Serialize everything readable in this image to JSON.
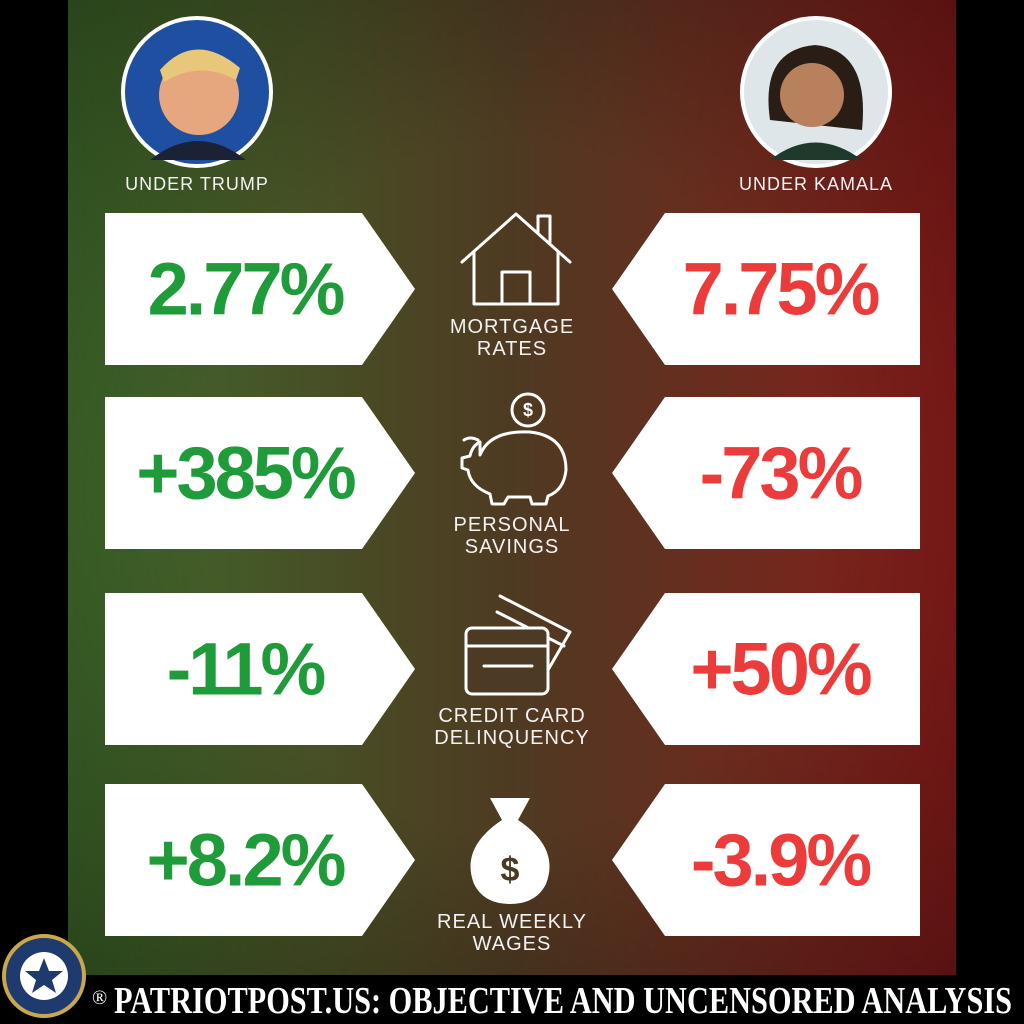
{
  "header": {
    "left_label": "UNDER TRUMP",
    "right_label": "UNDER KAMALA"
  },
  "rows": [
    {
      "label_lines": [
        "MORTGAGE",
        "RATES"
      ],
      "left": "2.77%",
      "right": "7.75%"
    },
    {
      "label_lines": [
        "PERSONAL",
        "SAVINGS"
      ],
      "left": "+385%",
      "right": "-73%"
    },
    {
      "label_lines": [
        "CREDIT CARD",
        "DELINQUENCY"
      ],
      "left": "-11%",
      "right": "+50%"
    },
    {
      "label_lines": [
        "REAL WEEKLY",
        "WAGES"
      ],
      "left": "+8.2%",
      "right": "-3.9%"
    }
  ],
  "footer": {
    "mark": "®",
    "text": "PATRIOTPOST.US: OBJECTIVE AND UNCENSORED ANALYSIS"
  }
}
